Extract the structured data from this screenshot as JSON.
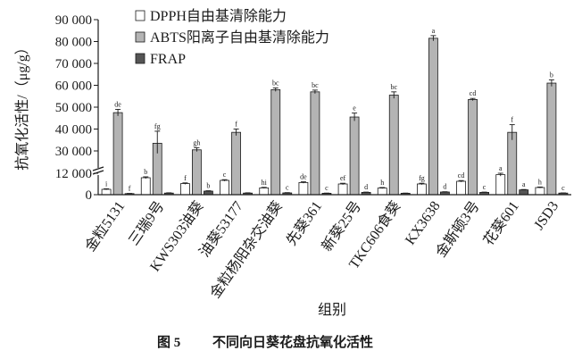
{
  "figure": {
    "caption_label": "图 5",
    "caption_text": "不同向日葵花盘抗氧化活性"
  },
  "chart_data": {
    "type": "bar",
    "xlabel": "组别",
    "ylabel": "抗氧化活性/（μg/g）",
    "axis_break": true,
    "ylim": [
      0,
      90000
    ],
    "yticks": [
      0,
      12000,
      30000,
      40000,
      50000,
      60000,
      70000,
      80000,
      90000
    ],
    "ytick_labels": [
      "0",
      "12 000",
      "30 000",
      "40 000",
      "50 000",
      "60 000",
      "70 000",
      "80 000",
      "90 000"
    ],
    "legend_position": "top-left",
    "categories": [
      "金粒5131",
      "三瑞9号",
      "KWS303油葵",
      "油葵53177",
      "金粒杨阳杂交油葵",
      "先葵361",
      "新葵25号",
      "TKC606食葵",
      "KX3638",
      "金斯顿3号",
      "花葵601",
      "JSD3"
    ],
    "series": [
      {
        "name": "DPPH自由基清除能力",
        "color": "#ffffff",
        "values": [
          3000,
          9500,
          6200,
          8000,
          3800,
          6800,
          6000,
          3700,
          6000,
          7500,
          11200,
          4000
        ],
        "errors": [
          300,
          500,
          400,
          400,
          300,
          400,
          400,
          300,
          400,
          400,
          800,
          300
        ],
        "letters": [
          "i",
          "b",
          "f",
          "c",
          "hi",
          "de",
          "ef",
          "h",
          "fg",
          "cd",
          "a",
          "h"
        ]
      },
      {
        "name": "ABTS阳离子自由基清除能力",
        "color": "#b4b4b4",
        "values": [
          47500,
          33500,
          30500,
          38500,
          58000,
          57000,
          45500,
          55500,
          81500,
          53500,
          38500,
          61000
        ],
        "errors": [
          1500,
          5500,
          1000,
          1500,
          800,
          800,
          1800,
          1500,
          1200,
          500,
          3500,
          1500
        ],
        "letters": [
          "de",
          "fg",
          "gh",
          "f",
          "bc",
          "bc",
          "e",
          "bc",
          "a",
          "cd",
          "f",
          "b"
        ]
      },
      {
        "name": "FRAP",
        "color": "#555555",
        "values": [
          600,
          900,
          2000,
          900,
          1000,
          800,
          1300,
          800,
          1500,
          1300,
          2700,
          900
        ],
        "errors": [
          100,
          150,
          200,
          150,
          150,
          100,
          150,
          100,
          150,
          150,
          200,
          100
        ],
        "letters": [
          "f",
          "",
          "b",
          "",
          "c",
          "c",
          "d",
          "",
          "d",
          "c",
          "a",
          "c"
        ]
      }
    ]
  }
}
